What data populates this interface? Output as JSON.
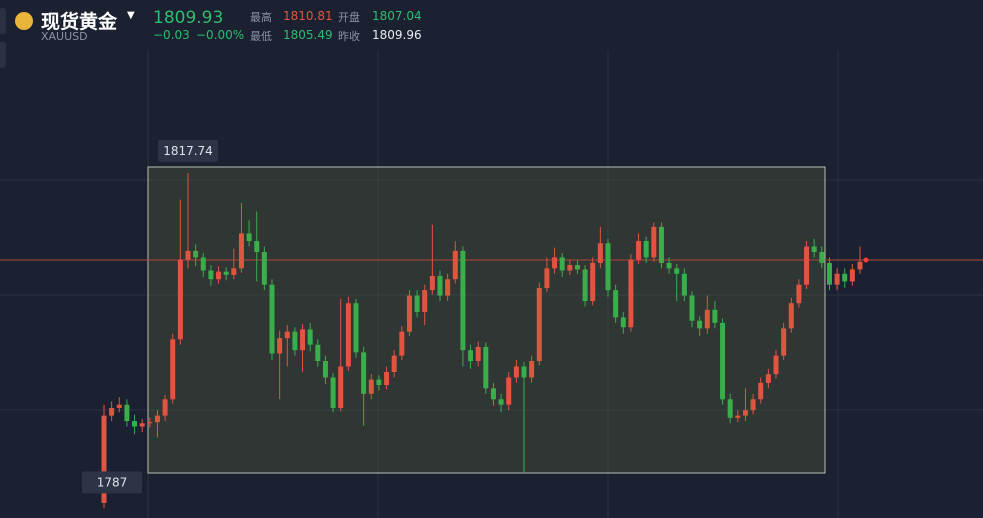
{
  "header": {
    "title": "现货黄金",
    "symbol": "XAUUSD",
    "price": "1809.93",
    "change": "−0.03",
    "change_pct": "−0.00%",
    "stats": [
      {
        "label": "最高",
        "value": "1810.81"
      },
      {
        "label": "开盘",
        "value": "1807.04"
      },
      {
        "label": "最低",
        "value": "1805.49"
      },
      {
        "label": "昨收",
        "value": "1809.96"
      }
    ]
  },
  "chart_data": {
    "type": "candlestick",
    "up_color": "#e0553f",
    "down_color": "#3aae4a",
    "ylim": [
      1785,
      1820
    ],
    "open": [
      1787.5,
      1795.5,
      1796.2,
      1796.5,
      1795.0,
      1794.5,
      1794.8,
      1794.9,
      1795.5,
      1797.0,
      1802.5,
      1809.8,
      1810.6,
      1810.0,
      1808.8,
      1808.0,
      1808.7,
      1808.4,
      1809.0,
      1812.2,
      1811.5,
      1810.5,
      1807.5,
      1801.2,
      1802.6,
      1803.2,
      1801.5,
      1803.4,
      1802.0,
      1800.5,
      1799.0,
      1796.2,
      1800.0,
      1805.8,
      1801.3,
      1797.5,
      1798.8,
      1798.3,
      1799.5,
      1801.0,
      1803.2,
      1806.5,
      1805.0,
      1807.0,
      1808.3,
      1806.5,
      1808.0,
      1810.6,
      1801.5,
      1800.5,
      1801.8,
      1798.0,
      1797.0,
      1796.5,
      1799.0,
      1800.0,
      1799.0,
      1800.5,
      1807.2,
      1809.0,
      1810.0,
      1808.8,
      1809.3,
      1808.9,
      1806.0,
      1809.5,
      1811.3,
      1807.0,
      1804.5,
      1803.6,
      1809.8,
      1811.5,
      1810.0,
      1812.8,
      1809.5,
      1809.0,
      1808.5,
      1806.5,
      1804.2,
      1803.5,
      1805.2,
      1804.0,
      1797.0,
      1795.3,
      1795.5,
      1796.0,
      1797.0,
      1798.5,
      1799.3,
      1801.0,
      1803.5,
      1805.8,
      1807.5,
      1811.0,
      1810.5,
      1809.5,
      1807.5,
      1808.5,
      1807.8,
      1808.9
    ],
    "high": [
      1796.5,
      1796.8,
      1797.2,
      1797.0,
      1795.6,
      1795.2,
      1795.3,
      1796.0,
      1797.4,
      1803.0,
      1815.3,
      1817.74,
      1811.2,
      1810.4,
      1809.3,
      1809.2,
      1809.1,
      1810.8,
      1815.0,
      1813.4,
      1814.2,
      1811.0,
      1808.0,
      1803.3,
      1803.8,
      1803.6,
      1803.9,
      1804.0,
      1802.5,
      1801.0,
      1799.4,
      1806.2,
      1806.4,
      1806.2,
      1801.8,
      1799.3,
      1799.2,
      1800.0,
      1801.5,
      1803.7,
      1807.0,
      1807.0,
      1807.5,
      1813.0,
      1808.8,
      1808.5,
      1811.5,
      1811.0,
      1802.0,
      1802.3,
      1802.2,
      1798.5,
      1797.5,
      1799.5,
      1800.6,
      1800.4,
      1801.0,
      1807.7,
      1810.0,
      1810.9,
      1810.4,
      1809.8,
      1809.7,
      1809.3,
      1810.0,
      1812.8,
      1811.7,
      1807.5,
      1805.0,
      1810.3,
      1812.2,
      1811.9,
      1813.2,
      1813.2,
      1810.0,
      1809.4,
      1809.0,
      1806.9,
      1804.6,
      1806.5,
      1806.0,
      1804.4,
      1797.5,
      1796.0,
      1798.0,
      1797.5,
      1799.0,
      1799.8,
      1801.5,
      1804.0,
      1806.3,
      1808.0,
      1811.5,
      1811.7,
      1811.0,
      1810.0,
      1809.0,
      1809.0,
      1809.4,
      1811.0
    ],
    "low": [
      1787.0,
      1795.0,
      1795.8,
      1794.5,
      1793.8,
      1794.0,
      1794.4,
      1793.5,
      1795.0,
      1796.6,
      1802.0,
      1809.0,
      1809.2,
      1808.2,
      1807.4,
      1807.6,
      1807.9,
      1808.0,
      1808.6,
      1811.0,
      1807.8,
      1807.0,
      1800.6,
      1797.0,
      1800.0,
      1801.0,
      1799.5,
      1801.4,
      1800.0,
      1798.4,
      1795.8,
      1795.9,
      1799.6,
      1800.8,
      1794.6,
      1797.0,
      1797.8,
      1797.9,
      1799.0,
      1800.6,
      1802.8,
      1804.5,
      1803.8,
      1806.6,
      1806.0,
      1806.0,
      1807.6,
      1800.0,
      1799.8,
      1800.0,
      1797.5,
      1796.4,
      1795.8,
      1796.0,
      1798.5,
      1790.33,
      1798.5,
      1800.1,
      1806.8,
      1808.5,
      1808.2,
      1808.4,
      1808.5,
      1805.5,
      1805.6,
      1809.0,
      1806.4,
      1804.0,
      1803.0,
      1803.2,
      1809.4,
      1809.5,
      1809.6,
      1809.0,
      1808.5,
      1806.0,
      1806.0,
      1803.6,
      1802.8,
      1803.0,
      1803.5,
      1796.5,
      1794.8,
      1794.9,
      1795.0,
      1795.6,
      1796.6,
      1798.0,
      1798.9,
      1800.6,
      1803.1,
      1805.4,
      1807.1,
      1810.0,
      1809.0,
      1807.0,
      1807.0,
      1807.2,
      1807.4,
      1808.5
    ],
    "close": [
      1795.5,
      1796.2,
      1796.5,
      1795.0,
      1794.5,
      1794.8,
      1794.9,
      1795.5,
      1797.0,
      1802.5,
      1809.8,
      1810.6,
      1810.0,
      1808.8,
      1808.0,
      1808.7,
      1808.4,
      1809.0,
      1812.2,
      1811.5,
      1810.5,
      1807.5,
      1801.2,
      1802.6,
      1803.2,
      1801.5,
      1803.4,
      1802.0,
      1800.5,
      1799.0,
      1796.2,
      1800.0,
      1805.8,
      1801.3,
      1797.5,
      1798.8,
      1798.3,
      1799.5,
      1801.0,
      1803.2,
      1806.5,
      1805.0,
      1807.0,
      1808.3,
      1806.5,
      1808.0,
      1810.6,
      1801.5,
      1800.5,
      1801.8,
      1798.0,
      1797.0,
      1796.5,
      1799.0,
      1800.0,
      1799.0,
      1800.5,
      1807.2,
      1809.0,
      1810.0,
      1808.8,
      1809.3,
      1808.9,
      1806.0,
      1809.5,
      1811.3,
      1807.0,
      1804.5,
      1803.6,
      1809.8,
      1811.5,
      1810.0,
      1812.8,
      1809.5,
      1809.0,
      1808.5,
      1806.5,
      1804.2,
      1803.5,
      1805.2,
      1804.0,
      1797.0,
      1795.3,
      1795.5,
      1796.0,
      1797.0,
      1798.5,
      1799.3,
      1801.0,
      1803.5,
      1805.8,
      1807.5,
      1811.0,
      1810.5,
      1809.5,
      1807.5,
      1808.5,
      1807.8,
      1808.9,
      1809.6
    ]
  }
}
